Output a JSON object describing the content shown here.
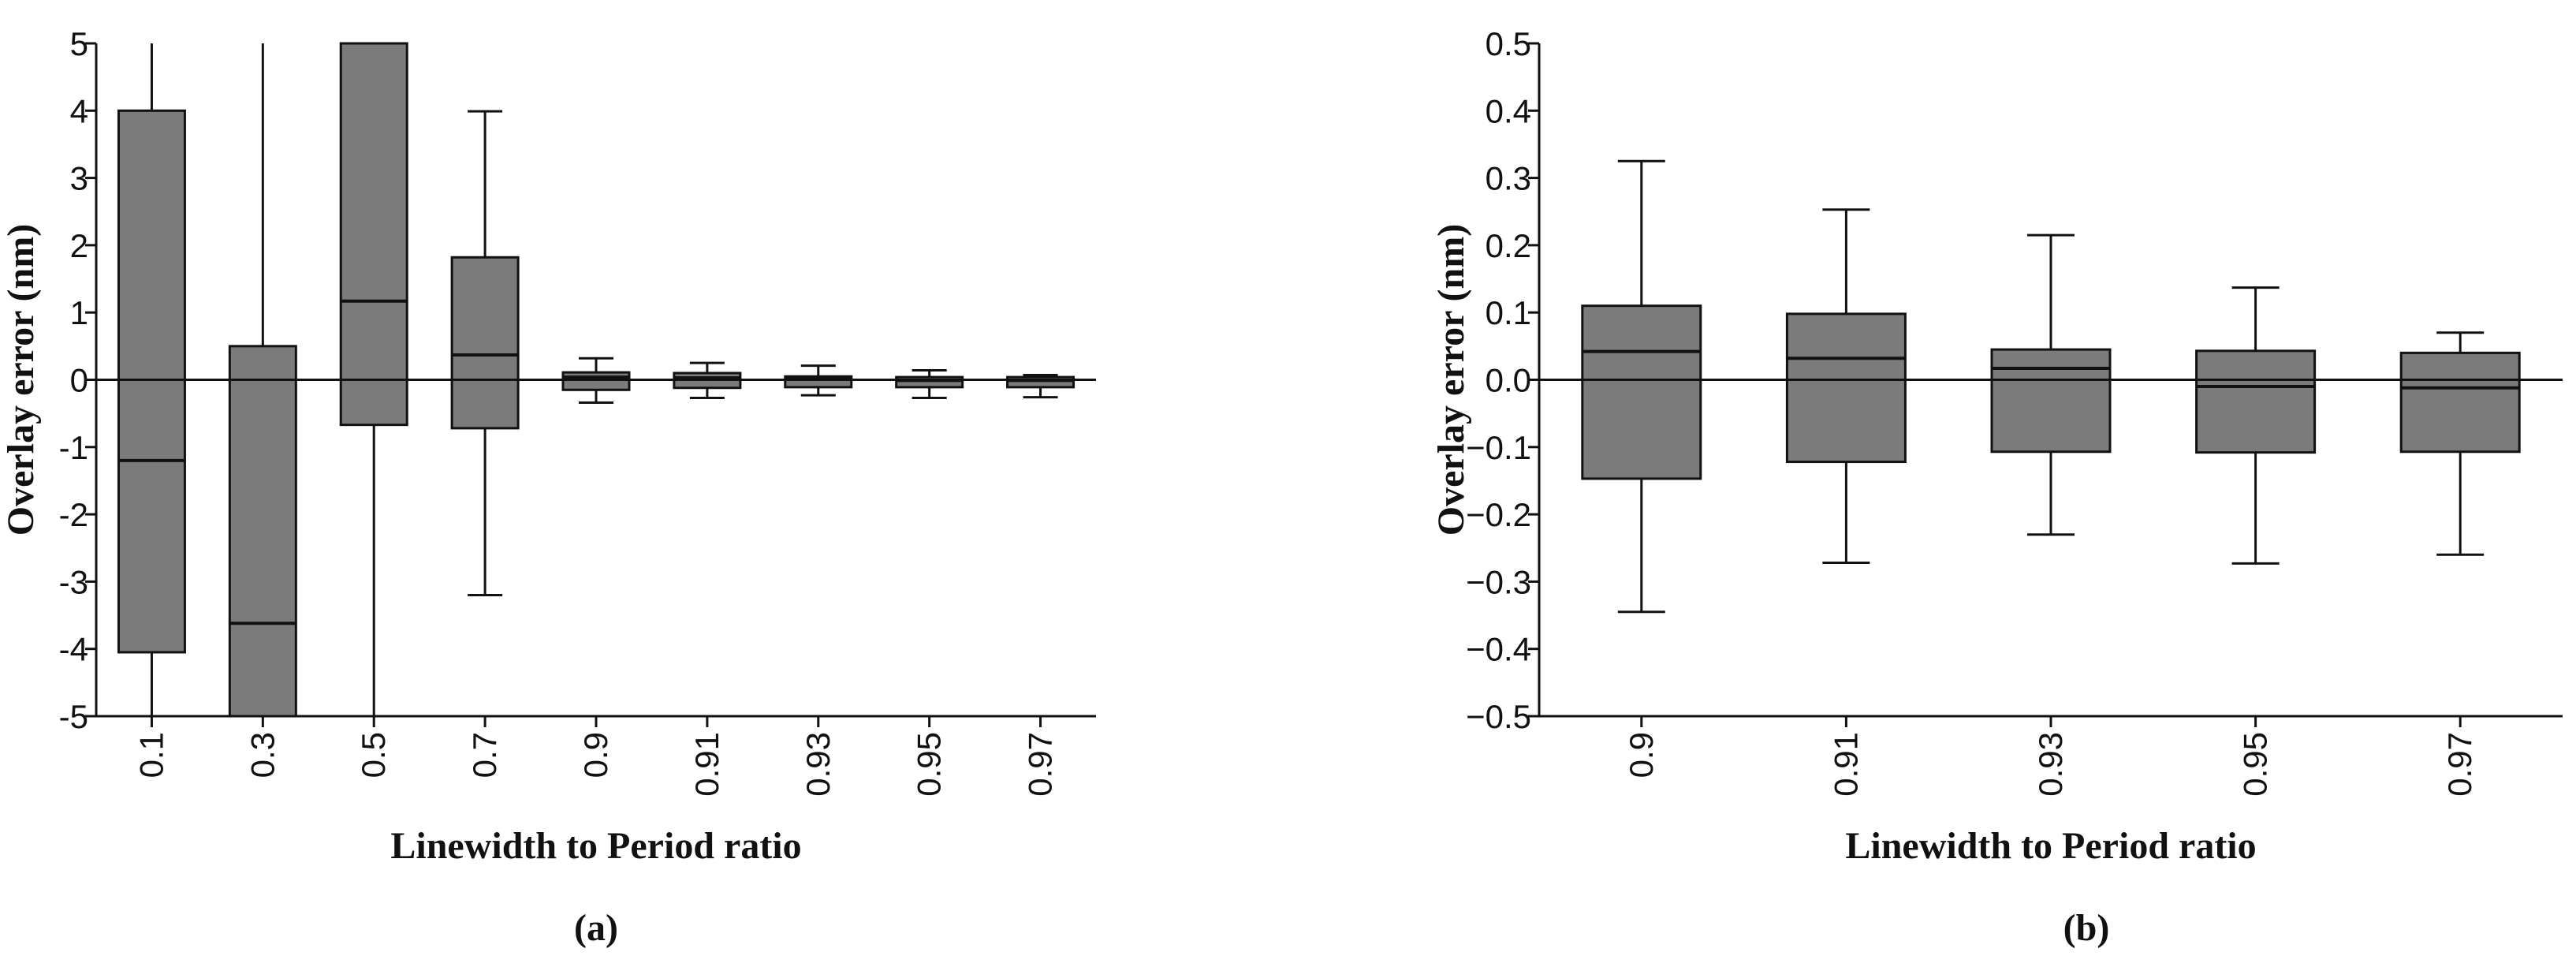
{
  "colors": {
    "box_fill": "#7b7b7b",
    "stroke": "#111111",
    "background": "#ffffff"
  },
  "chart_data": [
    {
      "type": "box",
      "panel_label": "(a)",
      "xlabel": "Linewidth to Period ratio",
      "ylabel": "Overlay error (nm)",
      "ylim": [
        -5,
        5
      ],
      "yticks": [
        "5",
        "4",
        "3",
        "2",
        "1",
        "0",
        "-1",
        "-2",
        "-3",
        "-4",
        "-5"
      ],
      "ytick_values": [
        5,
        4,
        3,
        2,
        1,
        0,
        -1,
        -2,
        -3,
        -4,
        -5
      ],
      "categories": [
        "0.1",
        "0.3",
        "0.5",
        "0.7",
        "0.9",
        "0.91",
        "0.93",
        "0.95",
        "0.97"
      ],
      "boxes": [
        {
          "whisker_low": -5.0,
          "q1": -4.05,
          "median": -1.2,
          "q3": 4.0,
          "whisker_high": 5.0
        },
        {
          "whisker_low": -5.0,
          "q1": -5.0,
          "median": -3.62,
          "q3": 0.5,
          "whisker_high": 5.0
        },
        {
          "whisker_low": -5.0,
          "q1": -0.67,
          "median": 1.17,
          "q3": 5.0,
          "whisker_high": 5.0
        },
        {
          "whisker_low": -3.2,
          "q1": -0.72,
          "median": 0.37,
          "q3": 1.82,
          "whisker_high": 3.99
        },
        {
          "whisker_low": -0.34,
          "q1": -0.15,
          "median": 0.04,
          "q3": 0.11,
          "whisker_high": 0.32
        },
        {
          "whisker_low": -0.27,
          "q1": -0.12,
          "median": 0.03,
          "q3": 0.1,
          "whisker_high": 0.25
        },
        {
          "whisker_low": -0.23,
          "q1": -0.11,
          "median": 0.02,
          "q3": 0.05,
          "whisker_high": 0.21
        },
        {
          "whisker_low": -0.27,
          "q1": -0.11,
          "median": -0.01,
          "q3": 0.04,
          "whisker_high": 0.14
        },
        {
          "whisker_low": -0.26,
          "q1": -0.11,
          "median": -0.01,
          "q3": 0.04,
          "whisker_high": 0.07
        }
      ],
      "zero_line": 0
    },
    {
      "type": "box",
      "panel_label": "(b)",
      "xlabel": "Linewidth to Period ratio",
      "ylabel": "Overlay error (nm)",
      "ylim": [
        -0.5,
        0.5
      ],
      "yticks": [
        "0.5",
        "0.4",
        "0.3",
        "0.2",
        "0.1",
        "0.0",
        "−0.1",
        "−0.2",
        "−0.3",
        "−0.4",
        "−0.5"
      ],
      "ytick_values": [
        0.5,
        0.4,
        0.3,
        0.2,
        0.1,
        0.0,
        -0.1,
        -0.2,
        -0.3,
        -0.4,
        -0.5
      ],
      "categories": [
        "0.9",
        "0.91",
        "0.93",
        "0.95",
        "0.97"
      ],
      "boxes": [
        {
          "whisker_low": -0.345,
          "q1": -0.147,
          "median": 0.042,
          "q3": 0.11,
          "whisker_high": 0.325
        },
        {
          "whisker_low": -0.272,
          "q1": -0.122,
          "median": 0.032,
          "q3": 0.098,
          "whisker_high": 0.253
        },
        {
          "whisker_low": -0.23,
          "q1": -0.107,
          "median": 0.017,
          "q3": 0.045,
          "whisker_high": 0.215
        },
        {
          "whisker_low": -0.273,
          "q1": -0.108,
          "median": -0.01,
          "q3": 0.043,
          "whisker_high": 0.137
        },
        {
          "whisker_low": -0.26,
          "q1": -0.107,
          "median": -0.012,
          "q3": 0.04,
          "whisker_high": 0.07
        }
      ],
      "zero_line": 0
    }
  ]
}
